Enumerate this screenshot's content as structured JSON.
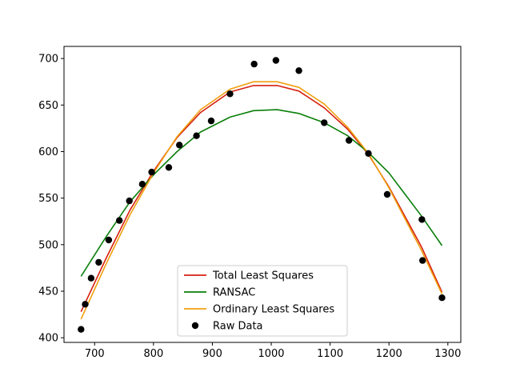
{
  "chart_data": {
    "type": "scatter",
    "title": "",
    "xlabel": "",
    "ylabel": "",
    "xlim": [
      648,
      1322
    ],
    "ylim": [
      395,
      713
    ],
    "xticks": [
      700,
      800,
      900,
      1000,
      1100,
      1200,
      1300
    ],
    "yticks": [
      400,
      450,
      500,
      550,
      600,
      650,
      700
    ],
    "grid": false,
    "legend_position": "lower center",
    "scatter": {
      "name": "Raw Data",
      "color": "#000000",
      "points": [
        {
          "x": 677,
          "y": 409
        },
        {
          "x": 684,
          "y": 436
        },
        {
          "x": 694,
          "y": 464
        },
        {
          "x": 707,
          "y": 481
        },
        {
          "x": 724,
          "y": 505
        },
        {
          "x": 742,
          "y": 526
        },
        {
          "x": 759,
          "y": 547
        },
        {
          "x": 781,
          "y": 565
        },
        {
          "x": 797,
          "y": 578
        },
        {
          "x": 826,
          "y": 583
        },
        {
          "x": 844,
          "y": 607
        },
        {
          "x": 873,
          "y": 617
        },
        {
          "x": 898,
          "y": 633
        },
        {
          "x": 930,
          "y": 662
        },
        {
          "x": 971,
          "y": 694
        },
        {
          "x": 1008,
          "y": 698
        },
        {
          "x": 1047,
          "y": 687
        },
        {
          "x": 1090,
          "y": 631
        },
        {
          "x": 1132,
          "y": 612
        },
        {
          "x": 1165,
          "y": 598
        },
        {
          "x": 1197,
          "y": 554
        },
        {
          "x": 1256,
          "y": 527
        },
        {
          "x": 1257,
          "y": 483
        },
        {
          "x": 1290,
          "y": 443
        }
      ]
    },
    "series": [
      {
        "name": "Total Least Squares",
        "color": "#d62010",
        "x": [
          677,
          720,
          760,
          800,
          840,
          880,
          930,
          970,
          1010,
          1047,
          1090,
          1130,
          1165,
          1200,
          1255,
          1290
        ],
        "y": [
          428,
          486,
          537,
          579,
          615,
          642,
          664,
          671,
          671,
          665,
          647,
          624,
          597,
          562,
          498,
          449
        ]
      },
      {
        "name": "RANSAC",
        "color": "#0a7f0a",
        "x": [
          677,
          720,
          760,
          800,
          840,
          880,
          930,
          970,
          1010,
          1047,
          1090,
          1130,
          1165,
          1200,
          1255,
          1290
        ],
        "y": [
          466,
          509,
          546,
          575,
          600,
          621,
          637,
          644,
          645,
          641,
          631,
          617,
          599,
          577,
          531,
          499
        ]
      },
      {
        "name": "Ordinary Least Squares",
        "color": "#f0a010",
        "x": [
          677,
          720,
          760,
          800,
          840,
          880,
          930,
          970,
          1010,
          1047,
          1090,
          1130,
          1165,
          1200,
          1255,
          1290
        ],
        "y": [
          420,
          480,
          532,
          577,
          616,
          645,
          667,
          675,
          675,
          669,
          651,
          626,
          598,
          561,
          494,
          447
        ]
      }
    ],
    "legend": [
      "Total Least Squares",
      "RANSAC",
      "Ordinary Least Squares",
      "Raw Data"
    ]
  }
}
